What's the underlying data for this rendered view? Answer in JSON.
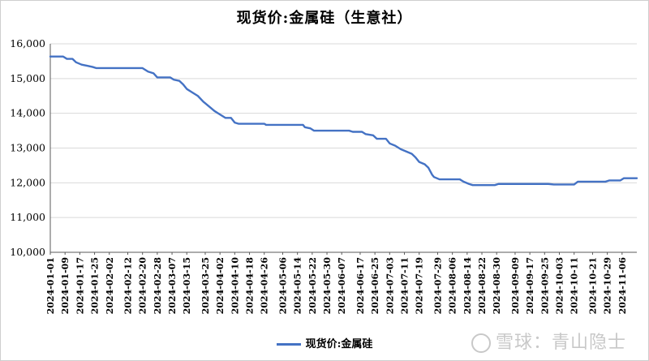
{
  "chart_data": {
    "type": "line",
    "title": "现货价:金属硅（生意社）",
    "xlabel": "",
    "ylabel": "",
    "ylim": [
      10000,
      16000
    ],
    "yticks": [
      "10,000",
      "11,000",
      "12,000",
      "13,000",
      "14,000",
      "15,000",
      "16,000"
    ],
    "grid": "horizontal",
    "legend_position": "bottom",
    "line_color": "#4472C4",
    "series": [
      {
        "name": "现货价:金属硅",
        "points": [
          [
            "2024-01-01",
            15633
          ],
          [
            "2024-01-08",
            15633
          ],
          [
            "2024-01-10",
            15567
          ],
          [
            "2024-01-13",
            15567
          ],
          [
            "2024-01-15",
            15467
          ],
          [
            "2024-01-18",
            15400
          ],
          [
            "2024-01-21",
            15367
          ],
          [
            "2024-01-24",
            15333
          ],
          [
            "2024-01-26",
            15300
          ],
          [
            "2024-02-20",
            15300
          ],
          [
            "2024-02-23",
            15200
          ],
          [
            "2024-02-26",
            15150
          ],
          [
            "2024-02-28",
            15033
          ],
          [
            "2024-03-06",
            15033
          ],
          [
            "2024-03-08",
            14967
          ],
          [
            "2024-03-11",
            14933
          ],
          [
            "2024-03-13",
            14833
          ],
          [
            "2024-03-15",
            14700
          ],
          [
            "2024-03-18",
            14600
          ],
          [
            "2024-03-21",
            14500
          ],
          [
            "2024-03-24",
            14333
          ],
          [
            "2024-03-27",
            14200
          ],
          [
            "2024-03-30",
            14067
          ],
          [
            "2024-04-02",
            13967
          ],
          [
            "2024-04-05",
            13867
          ],
          [
            "2024-04-08",
            13867
          ],
          [
            "2024-04-10",
            13733
          ],
          [
            "2024-04-12",
            13700
          ],
          [
            "2024-04-26",
            13700
          ],
          [
            "2024-04-27",
            13667
          ],
          [
            "2024-05-17",
            13667
          ],
          [
            "2024-05-18",
            13600
          ],
          [
            "2024-05-21",
            13567
          ],
          [
            "2024-05-23",
            13500
          ],
          [
            "2024-06-11",
            13500
          ],
          [
            "2024-06-13",
            13467
          ],
          [
            "2024-06-18",
            13467
          ],
          [
            "2024-06-20",
            13400
          ],
          [
            "2024-06-24",
            13367
          ],
          [
            "2024-06-26",
            13267
          ],
          [
            "2024-07-01",
            13267
          ],
          [
            "2024-07-03",
            13133
          ],
          [
            "2024-07-06",
            13067
          ],
          [
            "2024-07-09",
            12967
          ],
          [
            "2024-07-12",
            12900
          ],
          [
            "2024-07-15",
            12833
          ],
          [
            "2024-07-17",
            12733
          ],
          [
            "2024-07-19",
            12600
          ],
          [
            "2024-07-22",
            12533
          ],
          [
            "2024-07-24",
            12433
          ],
          [
            "2024-07-25",
            12333
          ],
          [
            "2024-07-26",
            12233
          ],
          [
            "2024-07-27",
            12167
          ],
          [
            "2024-07-30",
            12100
          ],
          [
            "2024-08-10",
            12100
          ],
          [
            "2024-08-12",
            12033
          ],
          [
            "2024-08-15",
            11967
          ],
          [
            "2024-08-17",
            11933
          ],
          [
            "2024-08-29",
            11933
          ],
          [
            "2024-08-31",
            11967
          ],
          [
            "2024-09-27",
            11967
          ],
          [
            "2024-09-30",
            11950
          ],
          [
            "2024-10-11",
            11950
          ],
          [
            "2024-10-13",
            12033
          ],
          [
            "2024-10-28",
            12033
          ],
          [
            "2024-10-30",
            12067
          ],
          [
            "2024-11-05",
            12067
          ],
          [
            "2024-11-07",
            12133
          ],
          [
            "2024-11-14",
            12133
          ]
        ]
      }
    ],
    "x_tick_labels": [
      "2024-01-01",
      "2024-01-09",
      "2024-01-17",
      "2024-01-25",
      "2024-02-02",
      "2024-02-12",
      "2024-02-20",
      "2024-02-28",
      "2024-03-07",
      "2024-03-15",
      "2024-03-25",
      "2024-04-02",
      "2024-04-10",
      "2024-04-18",
      "2024-04-26",
      "2024-05-06",
      "2024-05-14",
      "2024-05-22",
      "2024-05-30",
      "2024-06-07",
      "2024-06-17",
      "2024-06-25",
      "2024-07-03",
      "2024-07-11",
      "2024-07-19",
      "2024-07-29",
      "2024-08-06",
      "2024-08-14",
      "2024-08-22",
      "2024-08-30",
      "2024-09-09",
      "2024-09-17",
      "2024-09-25",
      "2024-10-03",
      "2024-10-11",
      "2024-10-21",
      "2024-10-29",
      "2024-11-06"
    ],
    "x_range": [
      "2024-01-01",
      "2024-11-14"
    ]
  },
  "legend": {
    "label": "现货价:金属硅"
  },
  "watermark": {
    "text": "雪球：青山隐士"
  }
}
